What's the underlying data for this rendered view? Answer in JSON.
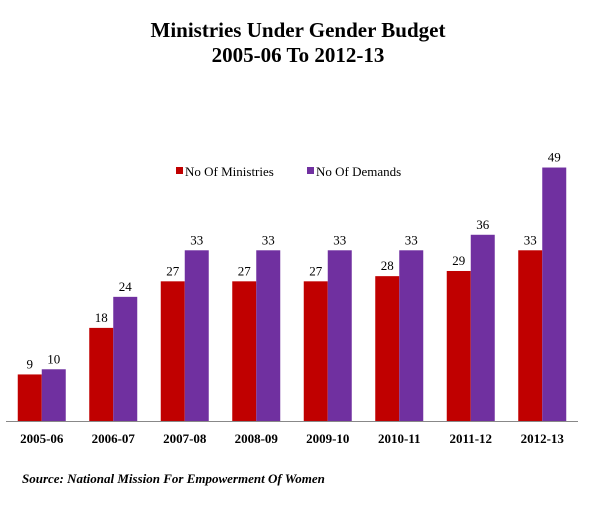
{
  "chart_data": {
    "type": "bar",
    "title": [
      "Ministries Under Gender Budget",
      "2005-06 To 2012-13"
    ],
    "categories": [
      "2005-06",
      "2006-07",
      "2007-08",
      "2008-09",
      "2009-10",
      "2010-11",
      "2011-12",
      "2012-13"
    ],
    "series": [
      {
        "name": "No Of Ministries",
        "color": "#c00000",
        "values": [
          9,
          18,
          27,
          27,
          27,
          28,
          29,
          33
        ]
      },
      {
        "name": "No Of Demands",
        "color": "#7030a0",
        "values": [
          10,
          24,
          33,
          33,
          33,
          33,
          36,
          49
        ]
      }
    ],
    "xlabel": "",
    "ylabel": "",
    "ylim": [
      0,
      52
    ],
    "grid": false,
    "legend": "top-right",
    "data_labels": true,
    "source": "Source: National Mission For Empowerment Of Women"
  }
}
